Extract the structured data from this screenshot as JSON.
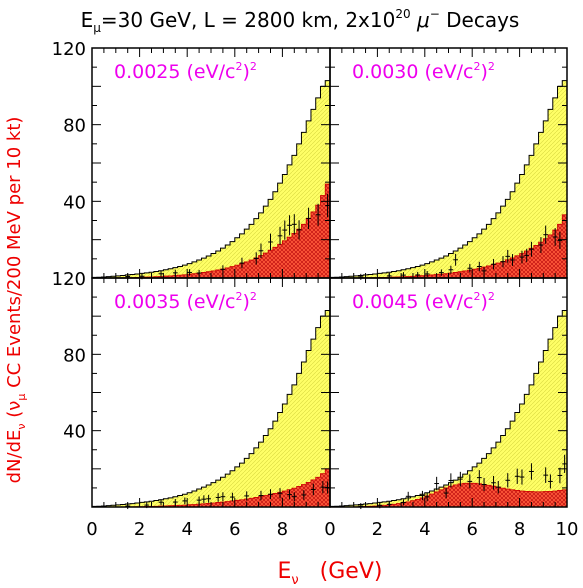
{
  "title": {
    "prefix": "E",
    "prefix_sub": "μ",
    "mid": "=30 GeV, L = 2800 km, 2x10",
    "exp": "20",
    "sym": " μ",
    "sym_sup": "−",
    "suffix": " Decays"
  },
  "ylabel": {
    "p1": "dN/dE",
    "p1_sub": "ν",
    "p2": "  (ν",
    "p2_sub": "μ",
    "p3": " CC Events/200 MeV per 10 kt)"
  },
  "xlabel": {
    "main": "E",
    "sub": "ν",
    "unit": "   (GeV)"
  },
  "colors": {
    "title": "#000000",
    "axis_label": "#ee0000",
    "panel_label": "#ee00ee",
    "yellow_fill": "#ffff66",
    "red_fill": "#ff3030",
    "line": "#000000"
  },
  "chart_data": {
    "type": "histogram",
    "bin_width_gev": 0.2,
    "xlim": [
      0,
      10
    ],
    "ylim": [
      0,
      120
    ],
    "xticks": [
      "0",
      "2",
      "4",
      "6",
      "8",
      "10"
    ],
    "yticks": [
      "40",
      "80",
      "120"
    ],
    "panels": [
      {
        "label_pre": "0.0025 (eV/c",
        "label_sup": "2",
        "label_post": ")",
        "label_sup2": "2",
        "x_range": [
          0,
          10
        ],
        "series": [
          {
            "name": "",
            "style": "yellow",
            "values": [
              0.3,
              0.4,
              0.5,
              0.7,
              0.9,
              1.1,
              1.3,
              1.6,
              1.8,
              2.1,
              2.4,
              2.7,
              3.0,
              3.4,
              3.8,
              4.3,
              4.8,
              5.4,
              6.0,
              6.7,
              7.5,
              8.4,
              9.4,
              10.4,
              11.5,
              12.8,
              14.1,
              15.6,
              17.2,
              19.0,
              21,
              23,
              25.5,
              28,
              31,
              34,
              37.5,
              41,
              45,
              49.5,
              54,
              59,
              64,
              70,
              76,
              82,
              88,
              94,
              100,
              103
            ]
          },
          {
            "name": "",
            "style": "red",
            "values": [
              0,
              0,
              0,
              0,
              0,
              0.1,
              0.1,
              0.2,
              0.2,
              0.3,
              0.4,
              0.5,
              0.6,
              0.7,
              0.8,
              1.0,
              1.1,
              1.3,
              1.5,
              1.7,
              2.0,
              2.3,
              2.6,
              2.9,
              3.3,
              3.7,
              4.2,
              4.7,
              5.3,
              6.0,
              6.7,
              7.5,
              8.4,
              9.4,
              10.5,
              11.7,
              13,
              14.5,
              16,
              17.6,
              19.4,
              21.3,
              23.3,
              25.5,
              28,
              31,
              34.5,
              38,
              43,
              49
            ]
          }
        ],
        "points": [
          [
            1.5,
            0.8
          ],
          [
            2.1,
            0.9
          ],
          [
            2.9,
            2.2
          ],
          [
            3.5,
            2.7
          ],
          [
            4.1,
            2.9
          ],
          [
            4.5,
            2.6
          ],
          [
            5.5,
            4.5
          ],
          [
            6.3,
            7.8
          ],
          [
            6.9,
            10.2
          ],
          [
            7.1,
            14.2
          ],
          [
            7.5,
            18.8
          ],
          [
            7.9,
            22.0
          ],
          [
            8.1,
            25.0
          ],
          [
            8.3,
            27.5
          ],
          [
            8.5,
            28.0
          ],
          [
            8.7,
            25.1
          ],
          [
            9.1,
            31.1
          ],
          [
            9.5,
            33.0
          ],
          [
            9.9,
            37.8
          ]
        ]
      },
      {
        "label_pre": "0.0030 (eV/c",
        "label_sup": "2",
        "label_post": ")",
        "label_sup2": "2",
        "x_range": [
          0,
          10
        ],
        "series": [
          {
            "name": "",
            "style": "yellow",
            "values": [
              0.3,
              0.4,
              0.5,
              0.7,
              0.9,
              1.1,
              1.3,
              1.6,
              1.8,
              2.1,
              2.4,
              2.7,
              3.0,
              3.4,
              3.8,
              4.3,
              4.8,
              5.4,
              6.0,
              6.7,
              7.5,
              8.4,
              9.4,
              10.4,
              11.5,
              12.8,
              14.1,
              15.6,
              17.2,
              19.0,
              21,
              23,
              25.5,
              28,
              31,
              34,
              37.5,
              41,
              45,
              49.5,
              54,
              59,
              64,
              70,
              76,
              82,
              88,
              94,
              100,
              103
            ]
          },
          {
            "name": "",
            "style": "red",
            "values": [
              0,
              0,
              0,
              0,
              0,
              0,
              0.1,
              0.1,
              0.2,
              0.2,
              0.3,
              0.3,
              0.4,
              0.5,
              0.6,
              0.7,
              0.8,
              0.9,
              1.1,
              1.2,
              1.4,
              1.6,
              1.8,
              2.0,
              2.3,
              2.6,
              2.9,
              3.3,
              3.7,
              4.1,
              4.6,
              5.1,
              5.7,
              6.3,
              7.0,
              7.8,
              8.6,
              9.5,
              10.5,
              11.6,
              12.8,
              14.1,
              15.5,
              17.0,
              18.7,
              20.5,
              22.5,
              25,
              28,
              33
            ]
          }
        ],
        "points": [
          [
            1.3,
            0.6
          ],
          [
            2.5,
            1.1
          ],
          [
            3.1,
            1.5
          ],
          [
            3.7,
            1.6
          ],
          [
            4.1,
            2.1
          ],
          [
            4.7,
            2.8
          ],
          [
            5.1,
            4.3
          ],
          [
            5.3,
            9.5
          ],
          [
            5.9,
            5.1
          ],
          [
            6.3,
            6.0
          ],
          [
            6.5,
            3.7
          ],
          [
            6.9,
            7.2
          ],
          [
            7.3,
            8.5
          ],
          [
            7.5,
            11.3
          ],
          [
            7.7,
            9.4
          ],
          [
            8.1,
            10.9
          ],
          [
            8.3,
            11.8
          ],
          [
            8.5,
            15.0
          ],
          [
            8.9,
            17.2
          ],
          [
            9.1,
            22.6
          ],
          [
            9.5,
            21.4
          ],
          [
            9.7,
            19.6
          ]
        ]
      },
      {
        "label_pre": "0.0035 (eV/c",
        "label_sup": "2",
        "label_post": ")",
        "label_sup2": "2",
        "x_range": [
          0,
          10
        ],
        "series": [
          {
            "name": "",
            "style": "yellow",
            "values": [
              0.3,
              0.4,
              0.5,
              0.7,
              0.9,
              1.1,
              1.3,
              1.6,
              1.8,
              2.1,
              2.4,
              2.7,
              3.0,
              3.4,
              3.8,
              4.3,
              4.8,
              5.4,
              6.0,
              6.7,
              7.5,
              8.4,
              9.4,
              10.4,
              11.5,
              12.8,
              14.1,
              15.6,
              17.2,
              19.0,
              21,
              23,
              25.5,
              28,
              31,
              34,
              37.5,
              41,
              45,
              49.5,
              54,
              59,
              64,
              70,
              76,
              82,
              88,
              94,
              100,
              103
            ]
          },
          {
            "name": "",
            "style": "red",
            "values": [
              0,
              0,
              0,
              0,
              0,
              0,
              0,
              0.1,
              0.1,
              0.2,
              0.2,
              0.3,
              0.3,
              0.4,
              0.5,
              0.6,
              0.7,
              0.8,
              0.9,
              1.0,
              1.2,
              1.3,
              1.5,
              1.7,
              1.9,
              2.1,
              2.4,
              2.6,
              2.9,
              3.2,
              3.5,
              3.8,
              4.2,
              4.6,
              5.0,
              5.5,
              6.0,
              6.5,
              7.1,
              7.7,
              8.4,
              9.1,
              9.9,
              10.8,
              11.8,
              12.9,
              14.2,
              15.6,
              17.5,
              20.0
            ]
          }
        ],
        "points": [
          [
            1.5,
            0.5
          ],
          [
            2.3,
            1.0
          ],
          [
            2.9,
            2.5
          ],
          [
            3.5,
            2.6
          ],
          [
            3.9,
            3.2
          ],
          [
            4.5,
            3.6
          ],
          [
            4.7,
            4.1
          ],
          [
            4.9,
            4.3
          ],
          [
            5.3,
            5.0
          ],
          [
            5.5,
            5.4
          ],
          [
            5.9,
            5.2
          ],
          [
            6.5,
            5.8
          ],
          [
            7.1,
            6.0
          ],
          [
            7.5,
            6.7
          ],
          [
            7.9,
            7.2
          ],
          [
            8.3,
            6.5
          ],
          [
            8.5,
            5.4
          ],
          [
            8.9,
            6.3
          ],
          [
            9.3,
            9.2
          ],
          [
            9.7,
            10.4
          ],
          [
            9.9,
            10.2
          ]
        ]
      },
      {
        "label_pre": "0.0045 (eV/c",
        "label_sup": "2",
        "label_post": ")",
        "label_sup2": "2",
        "x_range": [
          0,
          10
        ],
        "series": [
          {
            "name": "",
            "style": "yellow",
            "values": [
              0.3,
              0.4,
              0.5,
              0.7,
              0.9,
              1.1,
              1.3,
              1.6,
              1.8,
              2.1,
              2.4,
              2.7,
              3.0,
              3.4,
              3.8,
              4.3,
              4.8,
              5.4,
              6.0,
              6.7,
              7.5,
              8.4,
              9.4,
              10.4,
              11.5,
              12.8,
              14.1,
              15.6,
              17.2,
              19.0,
              21,
              23,
              25.5,
              28,
              31,
              34,
              37.5,
              41,
              45,
              49.5,
              54,
              59,
              64,
              70,
              76,
              82,
              88,
              94,
              100,
              103
            ]
          },
          {
            "name": "",
            "style": "red",
            "values": [
              0,
              0,
              0,
              0,
              0,
              0.1,
              0.2,
              0.3,
              0.4,
              0.5,
              0.7,
              0.9,
              1.1,
              1.4,
              1.8,
              2.2,
              2.7,
              3.3,
              4.0,
              4.8,
              5.8,
              6.8,
              7.9,
              9.0,
              10.0,
              10.9,
              11.6,
              12.1,
              12.4,
              12.5,
              12.4,
              12.2,
              11.8,
              11.4,
              10.9,
              10.4,
              9.9,
              9.4,
              9.0,
              8.7,
              8.4,
              8.2,
              8.1,
              8.0,
              8.0,
              8.1,
              8.2,
              8.4,
              8.7,
              9.0
            ]
          }
        ],
        "points": [
          [
            1.3,
            0.5
          ],
          [
            2.1,
            0.9
          ],
          [
            2.5,
            1.4
          ],
          [
            3.1,
            2.4
          ],
          [
            3.3,
            5.6
          ],
          [
            3.9,
            6.0
          ],
          [
            4.1,
            5.3
          ],
          [
            4.5,
            12.3
          ],
          [
            4.9,
            7.3
          ],
          [
            5.1,
            13.9
          ],
          [
            5.5,
            14.6
          ],
          [
            5.9,
            13.4
          ],
          [
            6.3,
            15.4
          ],
          [
            6.5,
            11.8
          ],
          [
            6.9,
            12.7
          ],
          [
            7.1,
            10.4
          ],
          [
            7.5,
            14.0
          ],
          [
            7.9,
            16.1
          ],
          [
            8.1,
            15.7
          ],
          [
            8.5,
            18.6
          ],
          [
            9.1,
            16.7
          ],
          [
            9.3,
            13.4
          ],
          [
            9.7,
            16.5
          ],
          [
            9.9,
            22.6
          ]
        ]
      }
    ]
  }
}
